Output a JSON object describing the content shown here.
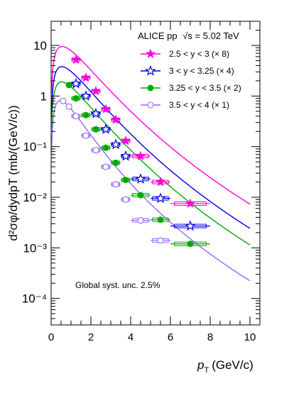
{
  "chart_data": {
    "type": "scatter",
    "title": "ALICE pp",
    "energy_label": "√s = 5.02 TeV",
    "annotation": "Global syst. unc. 2.5%",
    "xlabel": {
      "sym": "p",
      "sub": "T",
      "unit": "(GeV/c)"
    },
    "ylabel": "d²σφ/dydpT (mb/(GeV/c))",
    "xlim": [
      0,
      10.5
    ],
    "ylim": [
      3e-05,
      30
    ],
    "yscale": "log",
    "x_ticks": [
      "0",
      "2",
      "4",
      "6",
      "8",
      "10"
    ],
    "y_ticks": [
      "10",
      "1",
      "10⁻¹",
      "10⁻²",
      "10⁻³",
      "10⁻⁴"
    ],
    "legend_position": "top-right",
    "series": [
      {
        "name": "2.5 < y < 3 (× 8)",
        "color": "#ff00dd",
        "marker": "star-filled",
        "x": [
          1.25,
          1.75,
          2.25,
          2.75,
          3.25,
          3.75,
          4.5,
          5.5,
          7.0
        ],
        "xerr": [
          0.25,
          0.25,
          0.25,
          0.25,
          0.25,
          0.25,
          0.5,
          0.5,
          1.0
        ],
        "y": [
          5.2,
          2.3,
          1.25,
          0.55,
          0.34,
          0.13,
          0.065,
          0.02,
          0.0075
        ],
        "curve": {
          "A": 9.5,
          "x0": 0.6,
          "sigma": 0.53,
          "alpha": 1.05,
          "n": 9.8
        }
      },
      {
        "name": "3 < y < 3.25 (× 4)",
        "color": "#0000dd",
        "marker": "star-open",
        "x": [
          1.25,
          1.75,
          2.25,
          2.75,
          3.25,
          3.75,
          4.5,
          5.5,
          7.0
        ],
        "xerr": [
          0.25,
          0.25,
          0.25,
          0.25,
          0.25,
          0.25,
          0.5,
          0.5,
          1.0
        ],
        "y": [
          1.75,
          1.0,
          0.45,
          0.22,
          0.11,
          0.065,
          0.023,
          0.0095,
          0.0027
        ],
        "curve": {
          "A": 3.8,
          "x0": 0.55,
          "sigma": 0.51,
          "alpha": 1.05,
          "n": 9.8
        }
      },
      {
        "name": "3.25 < y < 3.5 (× 2)",
        "color": "#00aa00",
        "marker": "circle-filled",
        "x": [
          0.9,
          1.25,
          1.75,
          2.25,
          2.75,
          3.25,
          3.75,
          4.5,
          5.5,
          7.0
        ],
        "xerr": [
          0.15,
          0.25,
          0.25,
          0.25,
          0.25,
          0.25,
          0.25,
          0.5,
          0.5,
          1.0
        ],
        "y": [
          1.65,
          0.9,
          0.42,
          0.22,
          0.095,
          0.048,
          0.022,
          0.011,
          0.0036,
          0.0012
        ],
        "curve": {
          "A": 1.9,
          "x0": 0.5,
          "sigma": 0.5,
          "alpha": 1.05,
          "n": 9.8
        }
      },
      {
        "name": "3.5 < y < 4 (× 1)",
        "color": "#9966ff",
        "marker": "circle-open",
        "x": [
          0.6,
          0.9,
          1.25,
          1.75,
          2.25,
          2.75,
          3.25,
          3.75,
          4.5,
          5.5
        ],
        "xerr": [
          0.1,
          0.15,
          0.25,
          0.25,
          0.25,
          0.25,
          0.25,
          0.25,
          0.5,
          0.5
        ],
        "y": [
          0.8,
          0.62,
          0.4,
          0.165,
          0.085,
          0.04,
          0.018,
          0.009,
          0.0035,
          0.0014
        ],
        "curve": {
          "A": 0.8,
          "x0": 0.55,
          "sigma": 0.38,
          "alpha": 1.25,
          "n": 8.8
        }
      }
    ]
  }
}
